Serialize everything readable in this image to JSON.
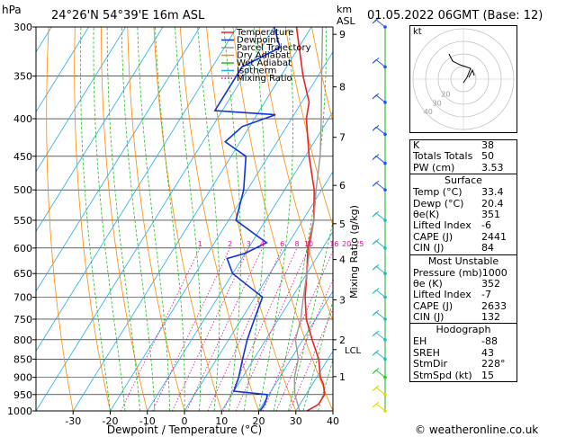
{
  "header": {
    "units_label": "hPa",
    "location": "24°26'N  54°39'E  16m  ASL",
    "km_label": "km",
    "asl_label": "ASL",
    "valid_time": "01.05.2022  06GMT  (Base: 12)"
  },
  "chart_data": {
    "type": "line",
    "xlabel": "Dewpoint / Temperature (°C)",
    "ylabel": "hPa",
    "mixing_ratio_label": "Mixing Ratio (g/kg)",
    "xlim": [
      -40,
      40
    ],
    "ylim": [
      1000,
      300
    ],
    "x_ticks": [
      "-30",
      "-20",
      "-10",
      "0",
      "10",
      "20",
      "30",
      "40"
    ],
    "pressure_ticks": [
      300,
      350,
      400,
      450,
      500,
      550,
      600,
      650,
      700,
      750,
      800,
      850,
      900,
      950,
      1000
    ],
    "km_ticks": [
      {
        "label": "9",
        "p": 307
      },
      {
        "label": "8",
        "p": 362
      },
      {
        "label": "7",
        "p": 424
      },
      {
        "label": "6",
        "p": 493
      },
      {
        "label": "5",
        "p": 556
      },
      {
        "label": "4",
        "p": 622
      },
      {
        "label": "3",
        "p": 706
      },
      {
        "label": "2",
        "p": 800
      },
      {
        "label": "1",
        "p": 898
      }
    ],
    "lcl": {
      "label": "LCL",
      "p": 825
    },
    "mixing_ratio_labels": [
      "1",
      "2",
      "3",
      "4",
      "6",
      "8",
      "10",
      "16",
      "20",
      "25"
    ],
    "mixing_ratio_values": [
      1,
      2,
      3,
      4,
      6,
      8,
      10,
      16,
      20,
      25
    ],
    "legend": [
      "Temperature",
      "Dewpoint",
      "Parcel Trajectory",
      "Dry Adiabat",
      "Wet Adiabat",
      "Isotherm",
      "Mixing Ratio"
    ],
    "legend_placement": "top-right",
    "colors": {
      "temperature": "#ee2222",
      "dewpoint": "#1133dd",
      "parcel": "#999999",
      "dry_adiabat": "#ff8800",
      "wet_adiabat": "#22bb22",
      "isotherm": "#22aaee",
      "mixing_ratio": "#dd1199"
    },
    "series": [
      {
        "name": "Temperature",
        "points": [
          [
            1000,
            33
          ],
          [
            980,
            35
          ],
          [
            950,
            35
          ],
          [
            920,
            33
          ],
          [
            900,
            31
          ],
          [
            850,
            27.5
          ],
          [
            800,
            22.5
          ],
          [
            750,
            17.5
          ],
          [
            700,
            13.5
          ],
          [
            650,
            10
          ],
          [
            600,
            6
          ],
          [
            550,
            3
          ],
          [
            500,
            -2
          ],
          [
            450,
            -9
          ],
          [
            400,
            -16
          ],
          [
            380,
            -18
          ],
          [
            350,
            -24
          ],
          [
            300,
            -34
          ]
        ]
      },
      {
        "name": "Dewpoint",
        "points": [
          [
            1000,
            20.4
          ],
          [
            980,
            20.5
          ],
          [
            960,
            20
          ],
          [
            950,
            19.5
          ],
          [
            940,
            10
          ],
          [
            900,
            9
          ],
          [
            850,
            7
          ],
          [
            800,
            5
          ],
          [
            750,
            3.5
          ],
          [
            700,
            2
          ],
          [
            650,
            -10
          ],
          [
            620,
            -14
          ],
          [
            610,
            -10
          ],
          [
            590,
            -6
          ],
          [
            580,
            -9
          ],
          [
            550,
            -18
          ],
          [
            500,
            -21
          ],
          [
            450,
            -26
          ],
          [
            430,
            -34
          ],
          [
            410,
            -32
          ],
          [
            395,
            -25
          ],
          [
            390,
            -42
          ],
          [
            340,
            -42
          ],
          [
            320,
            -35
          ],
          [
            300,
            -40
          ]
        ]
      },
      {
        "name": "Parcel Trajectory",
        "points": [
          [
            1000,
            31
          ],
          [
            950,
            27
          ],
          [
            900,
            24
          ],
          [
            850,
            22
          ],
          [
            800,
            18
          ],
          [
            750,
            16
          ],
          [
            700,
            13
          ],
          [
            650,
            10
          ],
          [
            600,
            6.5
          ],
          [
            550,
            3
          ],
          [
            500,
            -1.5
          ],
          [
            450,
            -6
          ],
          [
            400,
            -12
          ],
          [
            350,
            -19
          ],
          [
            300,
            -27
          ]
        ]
      }
    ]
  },
  "hodograph": {
    "unit": "kt",
    "ring_labels": [
      "20",
      "30",
      "40"
    ],
    "points": [
      [
        0,
        -2
      ],
      [
        2,
        1
      ],
      [
        4,
        6
      ],
      [
        -2,
        8
      ],
      [
        -6,
        10
      ],
      [
        -8,
        14
      ]
    ]
  },
  "wind_barb_colors": [
    "#2255ee",
    "#22bbbb",
    "#22cc22",
    "#dddd00"
  ],
  "indices": {
    "general": [
      {
        "label": "K",
        "value": "38"
      },
      {
        "label": "Totals Totals",
        "value": "50"
      },
      {
        "label": "PW (cm)",
        "value": "3.53"
      }
    ],
    "surface_title": "Surface",
    "surface": [
      {
        "label": "Temp (°C)",
        "value": "33.4"
      },
      {
        "label": "Dewp (°C)",
        "value": "20.4"
      },
      {
        "label": "θe(K)",
        "value": "351"
      },
      {
        "label": "Lifted Index",
        "value": "-6"
      },
      {
        "label": "CAPE (J)",
        "value": "2441"
      },
      {
        "label": "CIN (J)",
        "value": "84"
      }
    ],
    "mu_title": "Most Unstable",
    "mu": [
      {
        "label": "Pressure (mb)",
        "value": "1000"
      },
      {
        "label": "θe (K)",
        "value": "352"
      },
      {
        "label": "Lifted Index",
        "value": "-7"
      },
      {
        "label": "CAPE (J)",
        "value": "2633"
      },
      {
        "label": "CIN (J)",
        "value": "132"
      }
    ],
    "hodo_title": "Hodograph",
    "hodo": [
      {
        "label": "EH",
        "value": "-88"
      },
      {
        "label": "SREH",
        "value": "43"
      },
      {
        "label": "StmDir",
        "value": "228°"
      },
      {
        "label": "StmSpd (kt)",
        "value": "15"
      }
    ]
  },
  "footer": {
    "copyright": "© weatheronline.co.uk"
  }
}
